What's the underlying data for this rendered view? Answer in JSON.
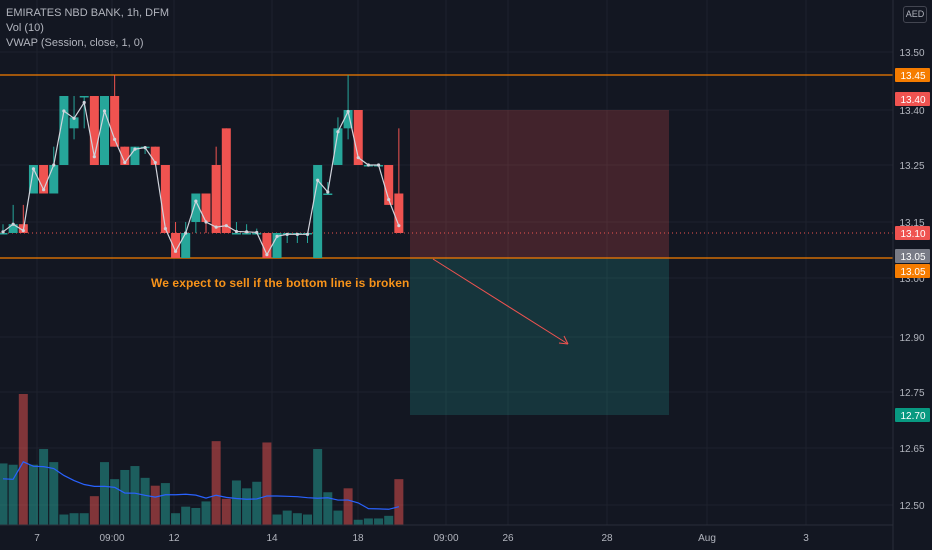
{
  "header": {
    "symbol_line": "EMIRATES NBD BANK, 1h, DFM",
    "indicators": [
      "Vol (10)",
      "VWAP (Session, close, 1, 0)"
    ]
  },
  "currency_label": "AED",
  "annotation_text": "We expect to sell if the bottom line is broken",
  "colors": {
    "background": "#131722",
    "up": "#26a69a",
    "down": "#ef5350",
    "vwap": "#d1d4dc",
    "volume_ma": "#2962ff",
    "horizontal_line": "#f57c00",
    "annotation": "#f7931a",
    "stop_zone": "#ef5350",
    "target_zone": "#26a69a",
    "grid": "#1e222d"
  },
  "chart_data": {
    "type": "candlestick",
    "y_ticks": [
      "13.50",
      "13.40",
      "13.25",
      "13.15",
      "13.00",
      "12.90",
      "12.75",
      "12.65",
      "12.50"
    ],
    "x_ticks": [
      "7",
      "09:00",
      "12",
      "14",
      "18",
      "09:00",
      "26",
      "28",
      "Aug",
      "3"
    ],
    "horizontal_lines": [
      13.45,
      13.05
    ],
    "price_labels": [
      {
        "text": "13.45",
        "kind": "line"
      },
      {
        "text": "13.40",
        "kind": "stop"
      },
      {
        "text": "13.10",
        "kind": "current"
      },
      {
        "text": "13.05",
        "kind": "entry"
      },
      {
        "text": "13.05",
        "kind": "line"
      },
      {
        "text": "12.70",
        "kind": "target"
      }
    ],
    "position": {
      "entry": 13.05,
      "stop": 13.4,
      "target": 12.7
    },
    "candles": [
      {
        "o": 13.1,
        "h": 13.14,
        "l": 13.1,
        "c": 13.1
      },
      {
        "o": 13.1,
        "h": 13.18,
        "l": 13.1,
        "c": 13.14
      },
      {
        "o": 13.14,
        "h": 13.18,
        "l": 13.1,
        "c": 13.1
      },
      {
        "o": 13.2,
        "h": 13.25,
        "l": 13.2,
        "c": 13.25
      },
      {
        "o": 13.25,
        "h": 13.25,
        "l": 13.2,
        "c": 13.2
      },
      {
        "o": 13.2,
        "h": 13.3,
        "l": 13.2,
        "c": 13.25
      },
      {
        "o": 13.25,
        "h": 13.42,
        "l": 13.25,
        "c": 13.42
      },
      {
        "o": 13.35,
        "h": 13.42,
        "l": 13.32,
        "c": 13.38
      },
      {
        "o": 13.42,
        "h": 13.42,
        "l": 13.35,
        "c": 13.42
      },
      {
        "o": 13.42,
        "h": 13.42,
        "l": 13.25,
        "c": 13.25
      },
      {
        "o": 13.25,
        "h": 13.42,
        "l": 13.25,
        "c": 13.42
      },
      {
        "o": 13.42,
        "h": 13.45,
        "l": 13.3,
        "c": 13.3
      },
      {
        "o": 13.3,
        "h": 13.3,
        "l": 13.25,
        "c": 13.25
      },
      {
        "o": 13.25,
        "h": 13.3,
        "l": 13.25,
        "c": 13.3
      },
      {
        "o": 13.3,
        "h": 13.3,
        "l": 13.28,
        "c": 13.3
      },
      {
        "o": 13.3,
        "h": 13.3,
        "l": 13.25,
        "c": 13.25
      },
      {
        "o": 13.25,
        "h": 13.25,
        "l": 13.1,
        "c": 13.1
      },
      {
        "o": 13.1,
        "h": 13.15,
        "l": 13.05,
        "c": 13.05
      },
      {
        "o": 13.05,
        "h": 13.15,
        "l": 13.05,
        "c": 13.1
      },
      {
        "o": 13.15,
        "h": 13.2,
        "l": 13.1,
        "c": 13.2
      },
      {
        "o": 13.2,
        "h": 13.2,
        "l": 13.1,
        "c": 13.15
      },
      {
        "o": 13.25,
        "h": 13.3,
        "l": 13.1,
        "c": 13.1
      },
      {
        "o": 13.35,
        "h": 13.35,
        "l": 13.1,
        "c": 13.1
      },
      {
        "o": 13.1,
        "h": 13.15,
        "l": 13.1,
        "c": 13.1
      },
      {
        "o": 13.1,
        "h": 13.14,
        "l": 13.1,
        "c": 13.1
      },
      {
        "o": 13.1,
        "h": 13.12,
        "l": 13.1,
        "c": 13.1
      },
      {
        "o": 13.1,
        "h": 13.1,
        "l": 13.05,
        "c": 13.05
      },
      {
        "o": 13.05,
        "h": 13.1,
        "l": 13.05,
        "c": 13.1
      },
      {
        "o": 13.1,
        "h": 13.1,
        "l": 13.08,
        "c": 13.1
      },
      {
        "o": 13.1,
        "h": 13.1,
        "l": 13.08,
        "c": 13.1
      },
      {
        "o": 13.1,
        "h": 13.1,
        "l": 13.08,
        "c": 13.1
      },
      {
        "o": 13.05,
        "h": 13.25,
        "l": 13.05,
        "c": 13.25
      },
      {
        "o": 13.2,
        "h": 13.22,
        "l": 13.2,
        "c": 13.2
      },
      {
        "o": 13.25,
        "h": 13.38,
        "l": 13.25,
        "c": 13.35
      },
      {
        "o": 13.35,
        "h": 13.45,
        "l": 13.32,
        "c": 13.4
      },
      {
        "o": 13.4,
        "h": 13.4,
        "l": 13.25,
        "c": 13.25
      },
      {
        "o": 13.25,
        "h": 13.25,
        "l": 13.25,
        "c": 13.25
      },
      {
        "o": 13.25,
        "h": 13.25,
        "l": 13.25,
        "c": 13.25
      },
      {
        "o": 13.25,
        "h": 13.25,
        "l": 13.18,
        "c": 13.18
      },
      {
        "o": 13.2,
        "h": 13.35,
        "l": 13.1,
        "c": 13.1
      }
    ],
    "volumes": [
      {
        "v": 0.47,
        "dir": "up"
      },
      {
        "v": 0.46,
        "dir": "up"
      },
      {
        "v": 1.0,
        "dir": "down"
      },
      {
        "v": 0.46,
        "dir": "up"
      },
      {
        "v": 0.58,
        "dir": "up"
      },
      {
        "v": 0.48,
        "dir": "up"
      },
      {
        "v": 0.08,
        "dir": "up"
      },
      {
        "v": 0.09,
        "dir": "up"
      },
      {
        "v": 0.09,
        "dir": "up"
      },
      {
        "v": 0.22,
        "dir": "down"
      },
      {
        "v": 0.48,
        "dir": "up"
      },
      {
        "v": 0.35,
        "dir": "up"
      },
      {
        "v": 0.42,
        "dir": "up"
      },
      {
        "v": 0.45,
        "dir": "up"
      },
      {
        "v": 0.36,
        "dir": "up"
      },
      {
        "v": 0.3,
        "dir": "down"
      },
      {
        "v": 0.32,
        "dir": "up"
      },
      {
        "v": 0.09,
        "dir": "up"
      },
      {
        "v": 0.14,
        "dir": "up"
      },
      {
        "v": 0.13,
        "dir": "up"
      },
      {
        "v": 0.18,
        "dir": "up"
      },
      {
        "v": 0.64,
        "dir": "down"
      },
      {
        "v": 0.2,
        "dir": "down"
      },
      {
        "v": 0.34,
        "dir": "up"
      },
      {
        "v": 0.28,
        "dir": "up"
      },
      {
        "v": 0.33,
        "dir": "up"
      },
      {
        "v": 0.63,
        "dir": "down"
      },
      {
        "v": 0.08,
        "dir": "up"
      },
      {
        "v": 0.11,
        "dir": "up"
      },
      {
        "v": 0.09,
        "dir": "up"
      },
      {
        "v": 0.08,
        "dir": "up"
      },
      {
        "v": 0.58,
        "dir": "up"
      },
      {
        "v": 0.25,
        "dir": "up"
      },
      {
        "v": 0.11,
        "dir": "up"
      },
      {
        "v": 0.28,
        "dir": "down"
      },
      {
        "v": 0.04,
        "dir": "up"
      },
      {
        "v": 0.05,
        "dir": "up"
      },
      {
        "v": 0.05,
        "dir": "up"
      },
      {
        "v": 0.07,
        "dir": "up"
      },
      {
        "v": 0.35,
        "dir": "down"
      }
    ],
    "grid": true
  }
}
